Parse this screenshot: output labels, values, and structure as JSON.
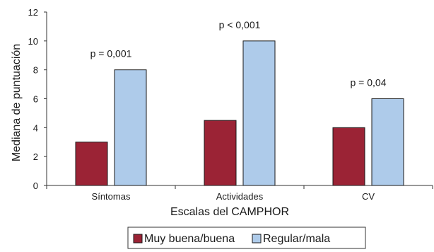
{
  "chart_data": {
    "type": "bar",
    "title": "",
    "xlabel": "Escalas del CAMPHOR",
    "ylabel": "Mediana de puntuación",
    "ylim": [
      0,
      12
    ],
    "yticks": [
      0,
      2,
      4,
      6,
      8,
      10,
      12
    ],
    "categories": [
      "Síntomas",
      "Actividades",
      "CV"
    ],
    "series": [
      {
        "name": "Muy buena/buena",
        "values": [
          3,
          4.5,
          4
        ],
        "color": "#9b2335"
      },
      {
        "name": "Regular/mala",
        "values": [
          8,
          10,
          6
        ],
        "color": "#aecbea"
      }
    ],
    "annotations": [
      "p = 0,001",
      "p < 0,001",
      "p = 0,04"
    ],
    "legend_position": "bottom",
    "grid": false
  }
}
